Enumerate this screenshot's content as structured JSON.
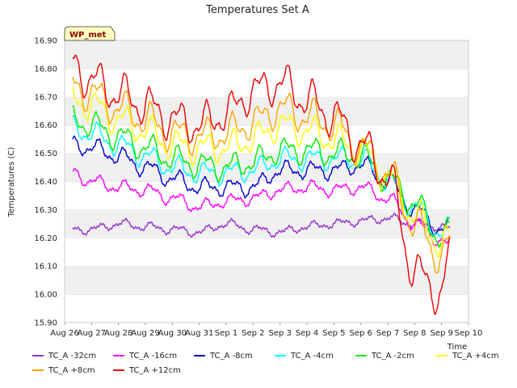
{
  "chart_data": {
    "type": "line",
    "title": "Temperatures Set A",
    "ylabel": "Temperatures (C)",
    "xlabel": "Time",
    "ylim": [
      15.9,
      16.9
    ],
    "xlim": [
      0,
      15
    ],
    "grid": "horizontal bands",
    "legend_position": "bottom",
    "annotation": "WP_met",
    "x_ticks": [
      {
        "x": 0,
        "label": "Aug 26"
      },
      {
        "x": 1,
        "label": "Aug 27"
      },
      {
        "x": 2,
        "label": "Aug 28"
      },
      {
        "x": 3,
        "label": "Aug 29"
      },
      {
        "x": 4,
        "label": "Aug 30"
      },
      {
        "x": 5,
        "label": "Aug 31"
      },
      {
        "x": 6,
        "label": "Sep 1"
      },
      {
        "x": 7,
        "label": "Sep 2"
      },
      {
        "x": 8,
        "label": "Sep 3"
      },
      {
        "x": 9,
        "label": "Sep 4"
      },
      {
        "x": 10,
        "label": "Sep 5"
      },
      {
        "x": 11,
        "label": "Sep 6"
      },
      {
        "x": 12,
        "label": "Sep 7"
      },
      {
        "x": 13,
        "label": "Sep 8"
      },
      {
        "x": 14,
        "label": "Sep 9"
      },
      {
        "x": 15,
        "label": "Sep 10"
      }
    ],
    "y_ticks": [
      "15.90",
      "16.00",
      "16.10",
      "16.20",
      "16.30",
      "16.40",
      "16.50",
      "16.60",
      "16.70",
      "16.80",
      "16.90"
    ],
    "x_days": [
      0.3,
      1,
      2,
      3,
      4,
      5,
      6,
      7,
      8,
      9,
      10,
      11,
      12,
      13,
      14,
      14.3
    ],
    "series": [
      {
        "name": "TC_A -32cm",
        "color": "#9a32cd",
        "values": [
          16.23,
          16.23,
          16.25,
          16.24,
          16.23,
          16.22,
          16.25,
          16.23,
          16.22,
          16.24,
          16.25,
          16.26,
          16.27,
          16.25,
          16.24,
          16.23
        ]
      },
      {
        "name": "TC_A -16cm",
        "color": "#ff00ff",
        "values": [
          16.43,
          16.4,
          16.38,
          16.37,
          16.34,
          16.31,
          16.33,
          16.34,
          16.37,
          16.38,
          16.37,
          16.38,
          16.34,
          16.25,
          16.19,
          16.17
        ]
      },
      {
        "name": "TC_A -8cm",
        "color": "#0000cd",
        "values": [
          16.53,
          16.52,
          16.49,
          16.45,
          16.41,
          16.38,
          16.38,
          16.38,
          16.44,
          16.44,
          16.44,
          16.46,
          16.4,
          16.3,
          16.23,
          16.24
        ]
      },
      {
        "name": "TC_A -4cm",
        "color": "#00ffff",
        "values": [
          16.59,
          16.57,
          16.53,
          16.49,
          16.45,
          16.43,
          16.43,
          16.44,
          16.48,
          16.48,
          16.48,
          16.48,
          16.4,
          16.31,
          16.22,
          16.23
        ]
      },
      {
        "name": "TC_A -2cm",
        "color": "#00ee00",
        "values": [
          16.62,
          16.6,
          16.56,
          16.52,
          16.48,
          16.46,
          16.45,
          16.47,
          16.51,
          16.51,
          16.5,
          16.49,
          16.41,
          16.32,
          16.2,
          16.22
        ]
      },
      {
        "name": "TC_A +4cm",
        "color": "#ffff00",
        "values": [
          16.69,
          16.67,
          16.62,
          16.58,
          16.53,
          16.52,
          16.52,
          16.55,
          16.6,
          16.58,
          16.55,
          16.51,
          16.42,
          16.28,
          16.18,
          16.2
        ]
      },
      {
        "name": "TC_A +8cm",
        "color": "#ffa500",
        "values": [
          16.74,
          16.71,
          16.66,
          16.62,
          16.57,
          16.56,
          16.57,
          16.61,
          16.66,
          16.63,
          16.6,
          16.52,
          16.43,
          16.25,
          16.13,
          16.18
        ]
      },
      {
        "name": "TC_A +12cm",
        "color": "#ee0000",
        "values": [
          16.81,
          16.76,
          16.71,
          16.67,
          16.62,
          16.6,
          16.64,
          16.72,
          16.75,
          16.69,
          16.63,
          16.53,
          16.42,
          16.08,
          16.0,
          16.15
        ]
      }
    ]
  }
}
